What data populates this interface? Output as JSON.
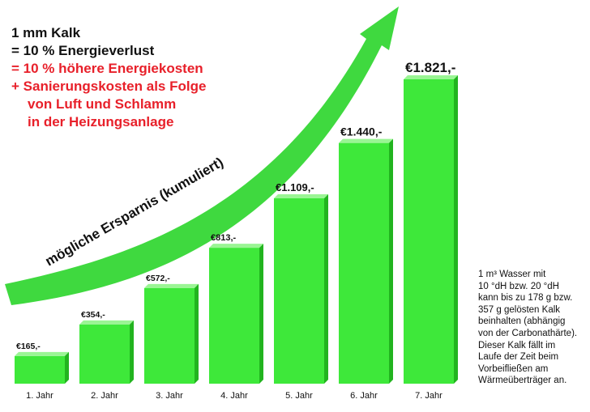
{
  "headline": {
    "line1": "1 mm Kalk",
    "line2": "= 10 % Energieverlust",
    "line3": "= 10 % höhere Energiekosten",
    "line4": "+ Sanierungskosten als Folge",
    "line5": "von Luft und Schlamm",
    "line6": "in der Heizungsanlage"
  },
  "side_note": {
    "line1": "1 m³ Wasser mit",
    "line2": "10 °dH bzw. 20 °dH",
    "line3": "kann bis zu 178 g bzw.",
    "line4": "357 g gelösten Kalk",
    "line5": "beinhalten (abhängig",
    "line6": "von der Carbonathärte).",
    "line7": "Dieser Kalk fällt im",
    "line8": "Laufe der Zeit beim",
    "line9": "Vorbeifließen am",
    "line10": "Wärmeüberträger an."
  },
  "colors": {
    "bar_front": "#3ee83a",
    "bar_top": "#9af594",
    "bar_side": "#22b41f",
    "arrow": "#3fd93f",
    "headline_black": "#111111",
    "headline_red": "#e8202a"
  },
  "chart_data": {
    "type": "bar",
    "title": "",
    "xlabel": "",
    "ylabel": "",
    "currency": "€",
    "categories": [
      "1. Jahr",
      "2. Jahr",
      "3. Jahr",
      "4. Jahr",
      "5. Jahr",
      "6. Jahr",
      "7. Jahr"
    ],
    "values": [
      165,
      354,
      572,
      813,
      1109,
      1440,
      1821
    ],
    "value_labels": [
      "165,-",
      "354,-",
      "572,-",
      "813,-",
      "1.109,-",
      "1.440,-",
      "1.821,-"
    ],
    "arrow_label": "mögliche Ersparnis (kumuliert)",
    "ylim": [
      0,
      1821
    ],
    "grid": false,
    "legend": "none"
  }
}
